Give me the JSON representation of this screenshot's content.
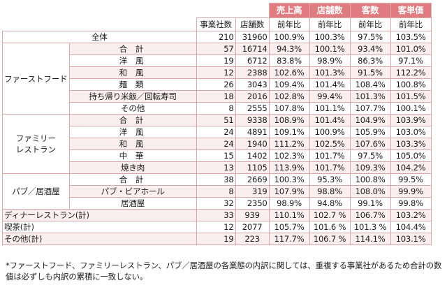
{
  "header": {
    "col_titles": [
      "売上高",
      "店舗数",
      "客数",
      "客単価"
    ],
    "sub": [
      "事業社数",
      "店舗数",
      "前年比",
      "前年比",
      "前年比",
      "前年比"
    ]
  },
  "rows": [
    {
      "cat": "",
      "label": "全体",
      "v": [
        "210",
        "31960",
        "100.9%",
        "100.3%",
        "97.5%",
        "103.5%"
      ]
    },
    {
      "cat": "",
      "label": "合 計",
      "v": [
        "57",
        "16714",
        "94.3%",
        "100.1%",
        "93.4%",
        "101.0%"
      ]
    },
    {
      "cat": "",
      "label": "洋 風",
      "v": [
        "19",
        "6712",
        "83.8%",
        "98.9%",
        "86.3%",
        "97.1%"
      ]
    },
    {
      "cat": "",
      "label": "和 風",
      "v": [
        "12",
        "2388",
        "102.6%",
        "101.3%",
        "91.5%",
        "112.2%"
      ]
    },
    {
      "cat": "",
      "label": "麺 類",
      "v": [
        "26",
        "3043",
        "109.4%",
        "101.4%",
        "108.4%",
        "100.8%"
      ]
    },
    {
      "cat": "",
      "label": "持ち帰り米飯／回転寿司",
      "v": [
        "18",
        "2016",
        "102.8%",
        "99.4%",
        "101.3%",
        "101.5%"
      ]
    },
    {
      "cat": "",
      "label": "その他",
      "v": [
        "8",
        "2555",
        "107.8%",
        "101.1%",
        "107.7%",
        "100.1%"
      ]
    },
    {
      "cat": "",
      "label": "合 計",
      "v": [
        "51",
        "9338",
        "108.9%",
        "101.4%",
        "104.9%",
        "103.9%"
      ]
    },
    {
      "cat": "",
      "label": "洋 風",
      "v": [
        "24",
        "4891",
        "109.1%",
        "100.9%",
        "105.9%",
        "103.0%"
      ]
    },
    {
      "cat": "",
      "label": "和 風",
      "v": [
        "24",
        "1940",
        "111.2%",
        "102.5%",
        "107.6%",
        "103.3%"
      ]
    },
    {
      "cat": "",
      "label": "中 華",
      "v": [
        "15",
        "1402",
        "102.3%",
        "101.7%",
        "97.5%",
        "105.0%"
      ]
    },
    {
      "cat": "",
      "label": "焼き肉",
      "v": [
        "13",
        "1105",
        "113.9%",
        "101.7%",
        "109.3%",
        "104.2%"
      ]
    },
    {
      "cat": "",
      "label": "合 計",
      "v": [
        "38",
        "2669",
        "100.3%",
        "95.3%",
        "100.8%",
        "99.5%"
      ]
    },
    {
      "cat": "",
      "label": "パブ・ビアホール",
      "v": [
        "8",
        "319",
        "107.9%",
        "98.8%",
        "108.0%",
        "99.9%"
      ]
    },
    {
      "cat": "",
      "label": "居酒屋",
      "v": [
        "32",
        "2350",
        "98.9%",
        "94.8%",
        "99.1%",
        "99.8%"
      ]
    },
    {
      "cat": "",
      "label": "ディナーレストラン(計)",
      "v": [
        "33",
        "939",
        "110.1%",
        "102.7 %",
        "106.7%",
        "103.2%"
      ]
    },
    {
      "cat": "",
      "label": "喫茶(計)",
      "v": [
        "12",
        "2077",
        "105.7%",
        "101.6 %",
        "101.3 %",
        "104.4%"
      ]
    },
    {
      "cat": "",
      "label": "その他(計)",
      "v": [
        "19",
        "223",
        "117.7%",
        "106.7 %",
        "114.1%",
        "103.1%"
      ]
    }
  ],
  "categories": {
    "ff": "ファーストフード",
    "family_1": "ファミリー",
    "family_2": "レストラン",
    "pub": "パブ／居酒屋"
  },
  "note": "*ファーストフード、ファミリーレストラン、パブ／居酒屋の各業態の内訳に関しては、重複する事業社があるため合計の数値は必ずしも内訳の累積に一致しない。"
}
